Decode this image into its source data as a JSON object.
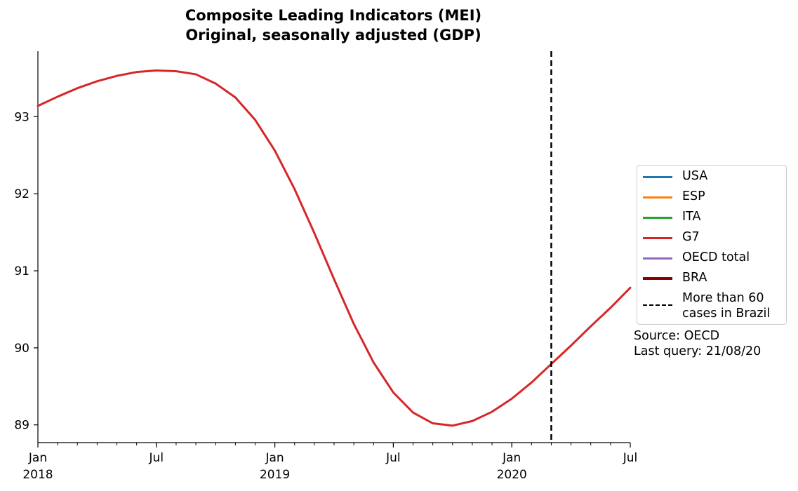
{
  "chart_data": {
    "type": "line",
    "title": "Composite Leading Indicators (MEI)",
    "subtitle": "Original, seasonally adjusted (GDP)",
    "xlabel": "",
    "ylabel": "",
    "ylim": [
      88.77,
      93.85
    ],
    "yticks": [
      89,
      90,
      91,
      92,
      93
    ],
    "x_range": [
      "2018-01",
      "2020-07"
    ],
    "x_ticks": [
      {
        "month_index": 0,
        "line1": "Jan",
        "line2": "2018"
      },
      {
        "month_index": 6,
        "line1": "Jul",
        "line2": ""
      },
      {
        "month_index": 12,
        "line1": "Jan",
        "line2": "2019"
      },
      {
        "month_index": 18,
        "line1": "Jul",
        "line2": ""
      },
      {
        "month_index": 24,
        "line1": "Jan",
        "line2": "2020"
      },
      {
        "month_index": 30,
        "line1": "Jul",
        "line2": ""
      }
    ],
    "series": [
      {
        "name": "USA",
        "color": "#1f77b4",
        "values": []
      },
      {
        "name": "ESP",
        "color": "#ff7f0e",
        "values": []
      },
      {
        "name": "ITA",
        "color": "#2ca02c",
        "values": []
      },
      {
        "name": "G7",
        "color": "#d62728",
        "x": [
          "2018-01",
          "2018-02",
          "2018-03",
          "2018-04",
          "2018-05",
          "2018-06",
          "2018-07",
          "2018-08",
          "2018-09",
          "2018-10",
          "2018-11",
          "2018-12",
          "2019-01",
          "2019-02",
          "2019-03",
          "2019-04",
          "2019-05",
          "2019-06",
          "2019-07",
          "2019-08",
          "2019-09",
          "2019-10",
          "2019-11",
          "2019-12",
          "2020-01",
          "2020-02",
          "2020-03",
          "2020-04",
          "2020-05",
          "2020-06",
          "2020-07"
        ],
        "values": [
          93.14,
          93.26,
          93.37,
          93.46,
          93.53,
          93.58,
          93.6,
          93.59,
          93.55,
          93.43,
          93.25,
          92.96,
          92.56,
          92.06,
          91.49,
          90.89,
          90.31,
          89.81,
          89.42,
          89.16,
          89.02,
          88.99,
          89.05,
          89.17,
          89.34,
          89.55,
          89.79,
          90.03,
          90.28,
          90.52,
          90.78
        ]
      },
      {
        "name": "OECD total",
        "color": "#9467bd",
        "values": []
      },
      {
        "name": "BRA",
        "color": "#8b0000",
        "values": []
      }
    ],
    "vline": {
      "x": "2020-03",
      "label": "More than 60\ncases in Brazil",
      "style": "dashed",
      "color": "#000000"
    },
    "legend_position": "center-right",
    "grid": false
  },
  "source_text": "Source: OECD",
  "query_text": "Last query: 21/08/20"
}
